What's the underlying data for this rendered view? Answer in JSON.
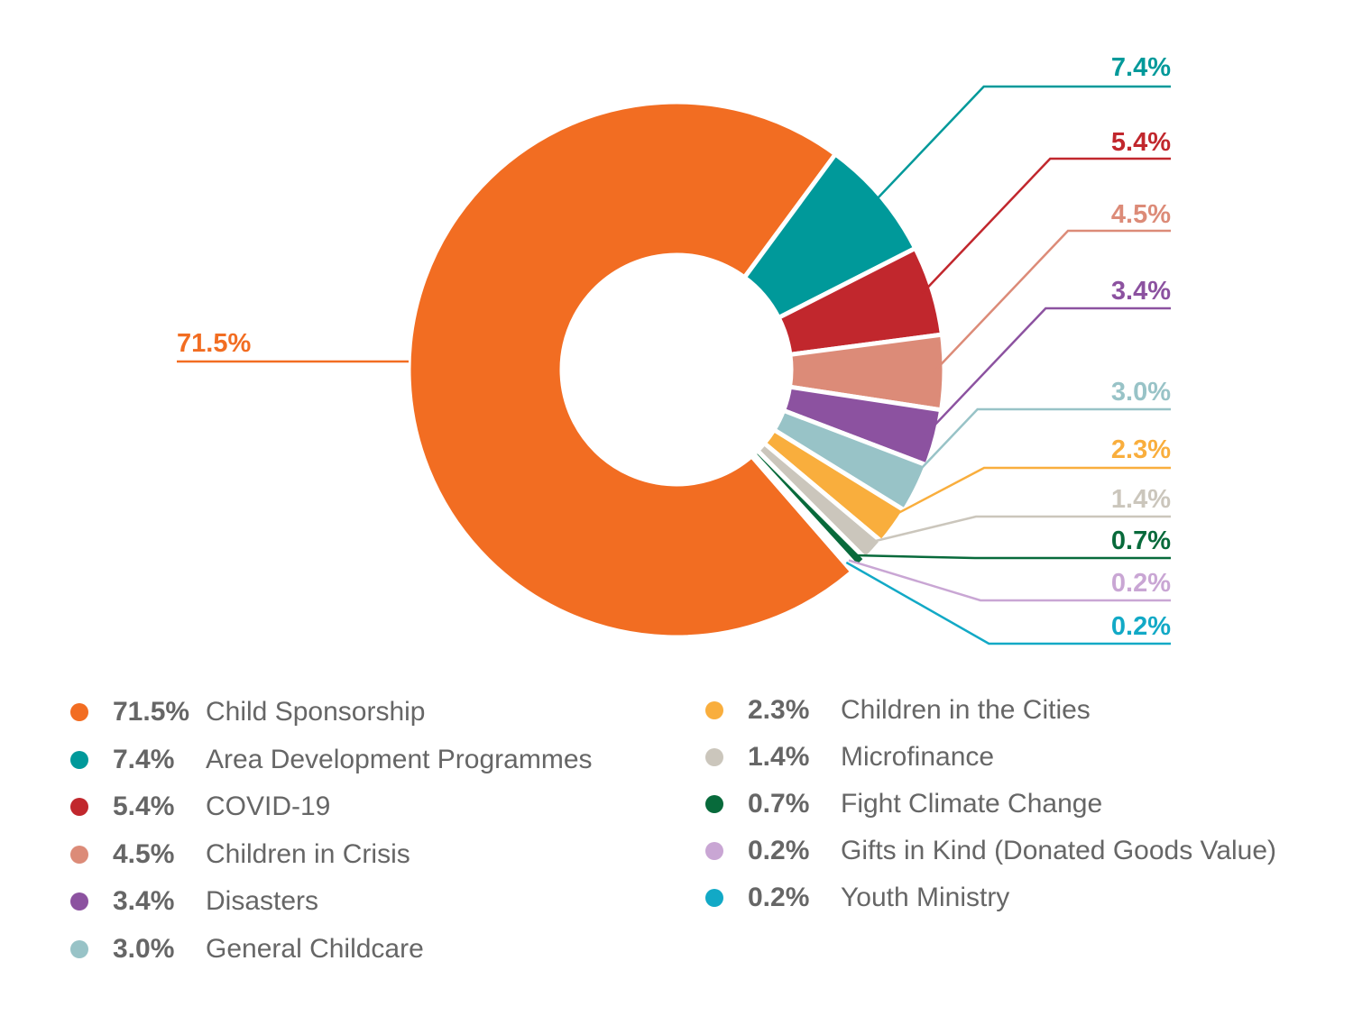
{
  "chart_data": {
    "type": "pie",
    "donut": true,
    "title": "",
    "slices": [
      {
        "label": "Child Sponsorship",
        "pct_label": "71.5%",
        "value": 71.5,
        "color": "#F26D22"
      },
      {
        "label": "Area Development Programmes",
        "pct_label": "7.4%",
        "value": 7.4,
        "color": "#00999A"
      },
      {
        "label": "COVID-19",
        "pct_label": "5.4%",
        "value": 5.4,
        "color": "#C1272D"
      },
      {
        "label": "Children in Crisis",
        "pct_label": "4.5%",
        "value": 4.5,
        "color": "#DC8B78"
      },
      {
        "label": "Disasters",
        "pct_label": "3.4%",
        "value": 3.4,
        "color": "#8C52A0"
      },
      {
        "label": "General Childcare",
        "pct_label": "3.0%",
        "value": 3.0,
        "color": "#98C3C7"
      },
      {
        "label": "Children in the Cities",
        "pct_label": "2.3%",
        "value": 2.3,
        "color": "#F9AE3D"
      },
      {
        "label": "Microfinance",
        "pct_label": "1.4%",
        "value": 1.4,
        "color": "#CBC6BC"
      },
      {
        "label": "Fight Climate Change",
        "pct_label": "0.7%",
        "value": 0.7,
        "color": "#086A3B"
      },
      {
        "label": "Gifts in Kind (Donated Goods Value)",
        "pct_label": "0.2%",
        "value": 0.2,
        "color": "#C9A6D4"
      },
      {
        "label": "Youth Ministry",
        "pct_label": "0.2%",
        "value": 0.2,
        "color": "#12A9C6"
      }
    ],
    "legend_placement": "bottom, two columns"
  }
}
